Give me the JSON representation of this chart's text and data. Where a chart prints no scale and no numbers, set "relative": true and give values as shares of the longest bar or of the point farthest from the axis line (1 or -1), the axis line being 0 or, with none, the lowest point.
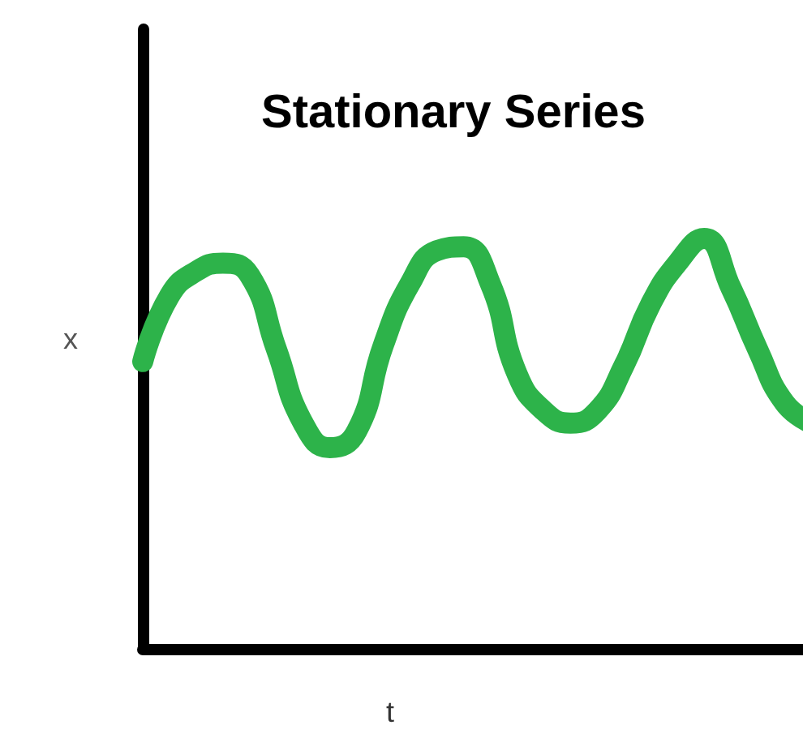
{
  "chart_data": {
    "type": "line",
    "title": "Stationary Series",
    "xlabel": "t",
    "ylabel": "x",
    "relative": true,
    "categories": [
      null,
      null,
      null,
      null,
      null,
      null,
      null,
      null,
      null,
      null,
      null,
      null,
      null,
      null,
      null,
      null,
      null,
      null,
      null,
      null,
      null,
      null,
      null,
      null,
      null,
      null
    ],
    "series": [
      {
        "color": "#2db34a",
        "values": [
          0.7,
          0.86,
          0.92,
          0.94,
          0.91,
          0.73,
          0.55,
          0.49,
          0.53,
          0.74,
          0.89,
          0.97,
          0.98,
          0.89,
          0.67,
          0.58,
          0.55,
          0.58,
          0.69,
          0.84,
          0.94,
          1.0,
          0.88,
          0.73,
          0.6,
          0.55
        ]
      }
    ],
    "grid": false,
    "line_style": "solid"
  }
}
